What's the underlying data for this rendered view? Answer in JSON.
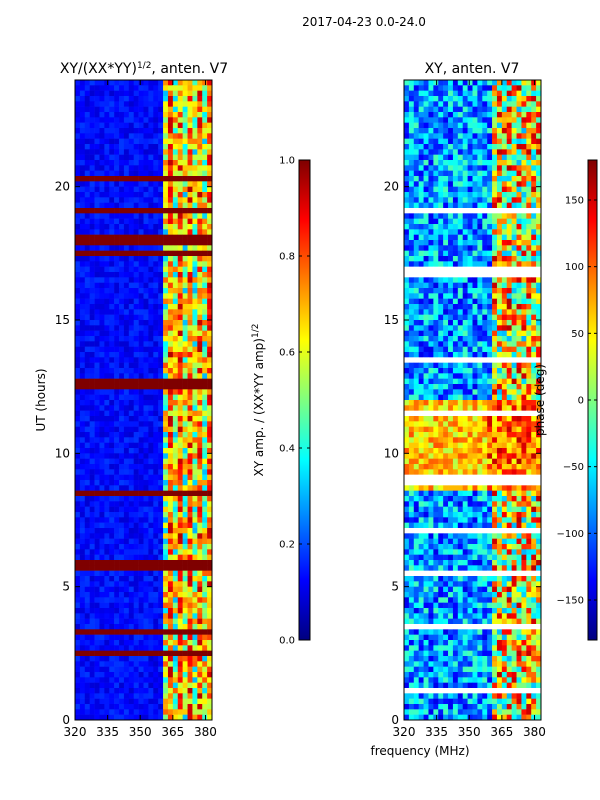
{
  "figure": {
    "suptitle": "2017-04-23 0.0-24.0",
    "shared_xlabel": "frequency (MHz)"
  },
  "colors": {
    "jet": [
      "#00007f",
      "#0000ff",
      "#007fff",
      "#00ffff",
      "#7fff7f",
      "#ffff00",
      "#ff7f00",
      "#ff0000",
      "#7f0000"
    ],
    "frame": "#000000",
    "background": "#ffffff"
  },
  "chart_data": [
    {
      "type": "heatmap",
      "title_main": "XY/(XX*YY)",
      "title_sup": "1/2",
      "title_rest": ", anten. V7",
      "xlabel": "",
      "ylabel": "UT (hours)",
      "xlim": [
        320,
        383
      ],
      "ylim": [
        0,
        24
      ],
      "xticks": [
        320,
        335,
        350,
        365,
        380
      ],
      "yticks": [
        0,
        5,
        10,
        15,
        20
      ],
      "colorbar": {
        "label_main": "XY amp. / (XX*YY amp)",
        "label_sup": "1/2",
        "range": [
          0.0,
          1.0
        ],
        "ticks": [
          "0.0",
          "0.2",
          "0.4",
          "0.6",
          "0.8",
          "1.0"
        ],
        "tick_values": [
          0.0,
          0.2,
          0.4,
          0.6,
          0.8,
          1.0
        ]
      },
      "red_flag_bands_hours": [
        20.3,
        19.2,
        18.1,
        17.8,
        17.5,
        17.0,
        12.6,
        8.6,
        5.8,
        3.3,
        2.5
      ]
    },
    {
      "type": "heatmap",
      "title": "XY, anten. V7",
      "xlabel": "frequency (MHz)",
      "ylabel": "",
      "xlim": [
        320,
        383
      ],
      "ylim": [
        0,
        24
      ],
      "xticks": [
        320,
        335,
        350,
        365,
        380
      ],
      "yticks": [
        0,
        5,
        10,
        15,
        20
      ],
      "colorbar": {
        "label": "phase (deg)",
        "range": [
          -180,
          180
        ],
        "ticks": [
          "150",
          "100",
          "50",
          "0",
          "−50",
          "−100",
          "−150"
        ],
        "tick_values": [
          150,
          100,
          50,
          0,
          -50,
          -100,
          -150
        ]
      },
      "blank_bands_hours": [
        19.1,
        16.8,
        13.5,
        11.5,
        9.0,
        7.0,
        5.5,
        3.5,
        1.0
      ]
    }
  ]
}
